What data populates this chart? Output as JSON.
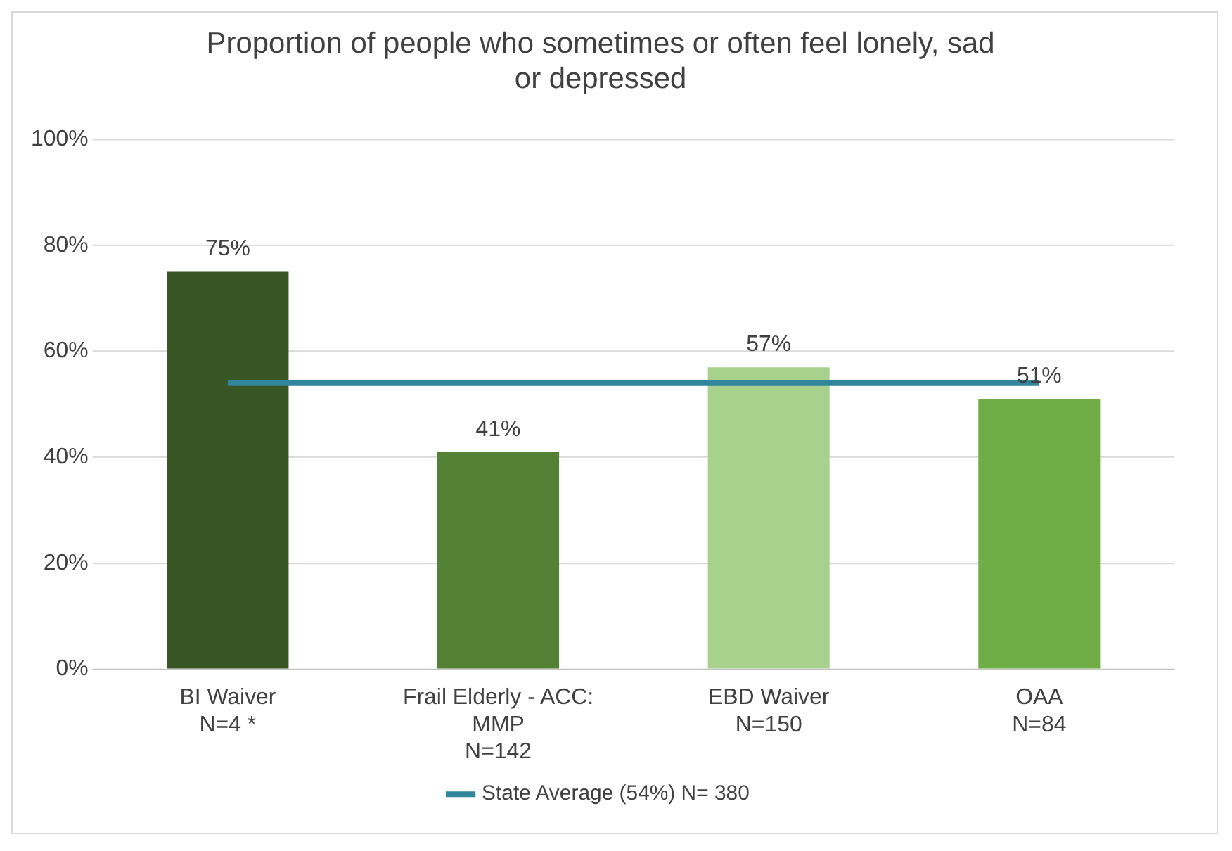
{
  "chart_data": {
    "type": "bar",
    "title": "Proportion of people who sometimes or often feel lonely, sad\nor depressed",
    "categories": [
      "BI Waiver\nN=4 *",
      "Frail Elderly - ACC:\nMMP\nN=142",
      "EBD Waiver\nN=150",
      "OAA\nN=84"
    ],
    "series": [
      {
        "values": [
          75,
          41,
          57,
          51
        ],
        "colors": [
          "#375623",
          "#548235",
          "#a9d18e",
          "#70ad47"
        ],
        "value_labels": [
          "75%",
          "41%",
          "57%",
          "51%"
        ]
      },
      {
        "type": "line",
        "name": "State Average (54%) N= 380",
        "color": "#31859c",
        "values": [
          54,
          54,
          54,
          54
        ]
      }
    ],
    "ylim": [
      0,
      100
    ],
    "yticks": [
      {
        "value": 0,
        "label": "0%"
      },
      {
        "value": 20,
        "label": "20%"
      },
      {
        "value": 40,
        "label": "40%"
      },
      {
        "value": 60,
        "label": "60%"
      },
      {
        "value": 80,
        "label": "80%"
      },
      {
        "value": 100,
        "label": "100%"
      }
    ],
    "grid": "y",
    "legend": "bottom",
    "marker": "none"
  }
}
